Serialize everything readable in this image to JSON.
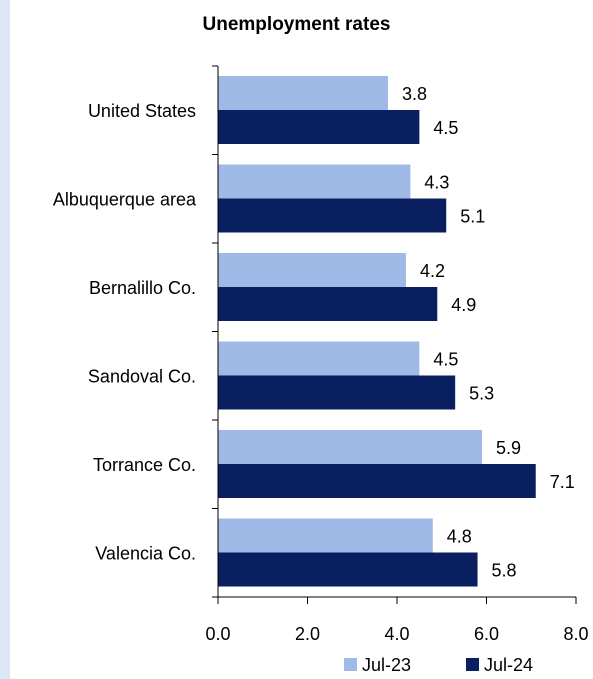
{
  "chart_data": {
    "type": "bar",
    "orientation": "horizontal",
    "title": "Unemployment rates",
    "categories": [
      "United States",
      "Albuquerque area",
      "Bernalillo Co.",
      "Sandoval Co.",
      "Torrance Co.",
      "Valencia Co."
    ],
    "series": [
      {
        "name": "Jul-23",
        "color": "#9fbae6",
        "values": [
          3.8,
          4.3,
          4.2,
          4.5,
          5.9,
          4.8
        ],
        "labels": [
          "3.8",
          "4.3",
          "4.2",
          "4.5",
          "5.9",
          "4.8"
        ]
      },
      {
        "name": "Jul-24",
        "color": "#0a1f5f",
        "values": [
          4.5,
          5.1,
          4.9,
          5.3,
          7.1,
          5.8
        ],
        "labels": [
          "4.5",
          "5.1",
          "4.9",
          "5.3",
          "7.1",
          "5.8"
        ]
      }
    ],
    "xlim": [
      0,
      8
    ],
    "xticks": [
      "0.0",
      "2.0",
      "4.0",
      "6.0",
      "8.0"
    ],
    "xtick_values": [
      0,
      2,
      4,
      6,
      8
    ],
    "grid": false,
    "legend_position": "bottom"
  }
}
